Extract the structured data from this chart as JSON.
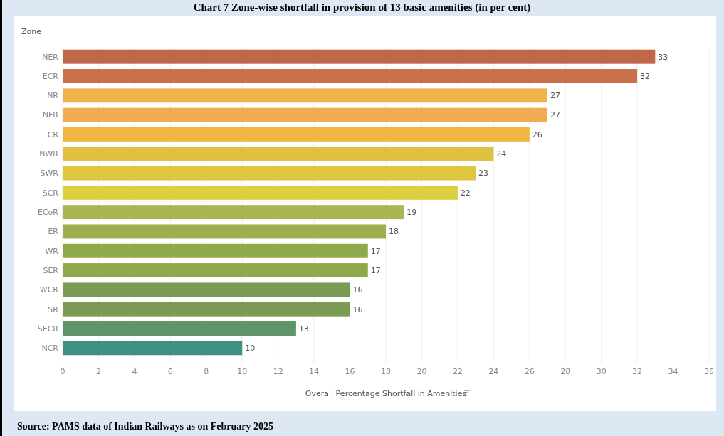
{
  "chart_data": {
    "type": "bar",
    "orientation": "horizontal",
    "title": "Chart 7 Zone-wise shortfall in provision of 13 basic amenities (in per cent)",
    "ylabel": "Zone",
    "xlabel": "Overall Percentage Shortfall in Amenities",
    "annotations": [
      "Source: PAMS data of Indian Railways as on February 2025"
    ],
    "categories": [
      "NER",
      "ECR",
      "NR",
      "NFR",
      "CR",
      "NWR",
      "SWR",
      "SCR",
      "ECoR",
      "ER",
      "WR",
      "SER",
      "WCR",
      "SR",
      "SECR",
      "NCR"
    ],
    "values": [
      33,
      32,
      27,
      27,
      26,
      24,
      23,
      22,
      19,
      18,
      17,
      17,
      16,
      16,
      13,
      10
    ],
    "colors": [
      "#c0674a",
      "#c8704a",
      "#f0b24a",
      "#f2ac50",
      "#eeb840",
      "#e0c040",
      "#dfc540",
      "#dccf40",
      "#aab455",
      "#9db04c",
      "#8fa94c",
      "#8fa94c",
      "#7c9c55",
      "#7c9c55",
      "#5e9468",
      "#3e9080"
    ],
    "xlim": [
      0,
      36
    ],
    "xticks": [
      0,
      2,
      4,
      6,
      8,
      10,
      12,
      14,
      16,
      18,
      20,
      22,
      24,
      26,
      28,
      30,
      32,
      34,
      36
    ],
    "grid": "x",
    "data_labels": true
  }
}
